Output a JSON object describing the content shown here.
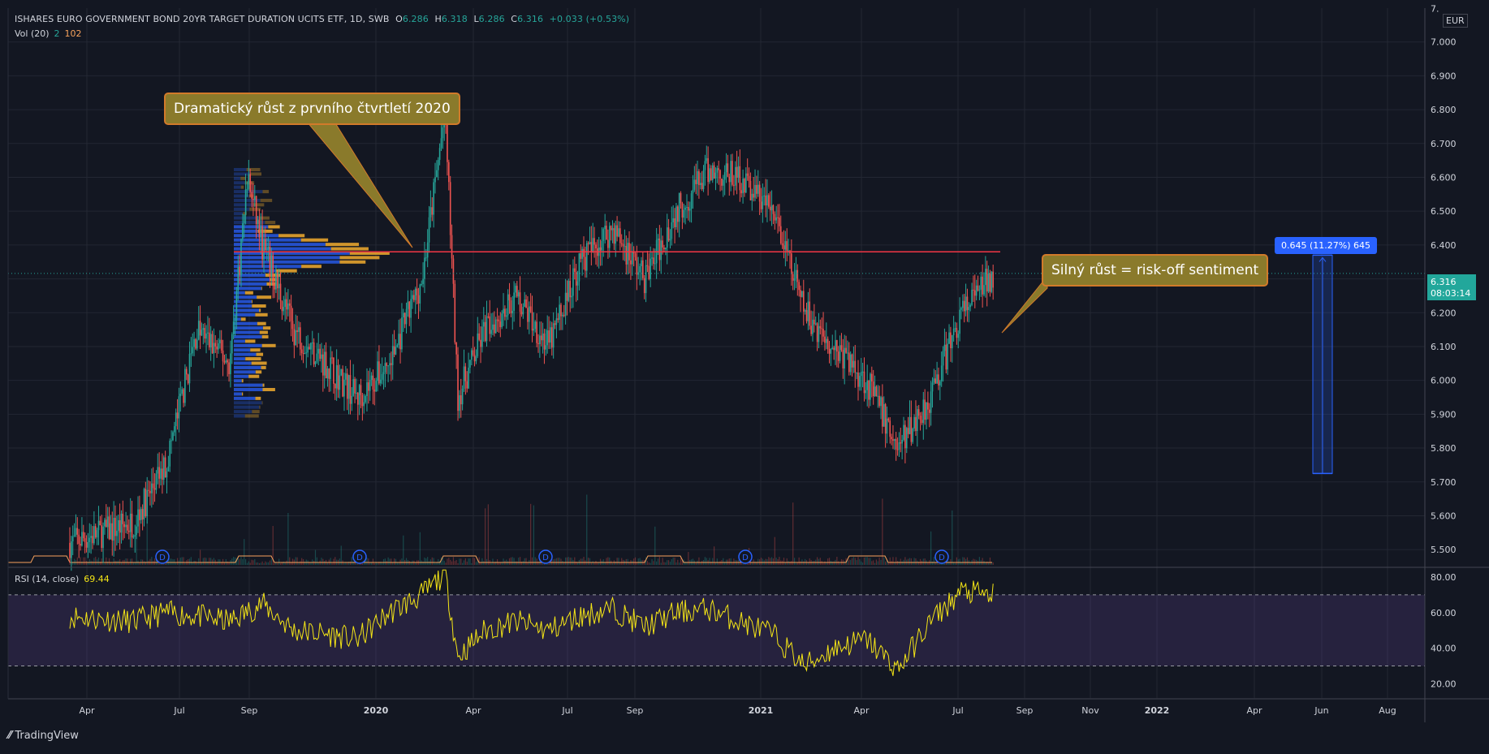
{
  "header": {
    "symbol": "ISHARES EURO GOVERNMENT BOND 20YR TARGET DURATION UCITS ETF, 1D, SWB",
    "o_label": "O",
    "o_value": "6.286",
    "h_label": "H",
    "h_value": "6.318",
    "l_label": "L",
    "l_value": "6.286",
    "c_label": "C",
    "c_value": "6.316",
    "change": "+0.033 (+0.53%)"
  },
  "volume_legend": {
    "label": "Vol (20)",
    "value1": "2",
    "value2": "102"
  },
  "rsi_legend": {
    "label": "RSI (14, close)",
    "value": "69.44"
  },
  "currency": "EUR",
  "last_price": {
    "price": "6.316",
    "countdown": "08:03:14"
  },
  "annotations": {
    "left": "Dramatický růst z prvního čtvrtletí 2020",
    "right": "Silný růst = risk-off sentiment"
  },
  "measure_label": "0.645 (11.27%) 645",
  "branding": "TradingView",
  "colors": {
    "up": "#26a69a",
    "down": "#ef5350",
    "rsi": "#f5e616",
    "resistance": "#f23645",
    "measure": "#2962ff"
  },
  "chart_data": {
    "type": "candlestick",
    "y_ticks": [
      "7.000",
      "6.900",
      "6.800",
      "6.700",
      "6.600",
      "6.500",
      "6.400",
      "6.300",
      "6.200",
      "6.100",
      "6.000",
      "5.900",
      "5.800",
      "5.700",
      "5.600",
      "5.500"
    ],
    "y_top_partial": "7.",
    "y_range": [
      5.45,
      7.1
    ],
    "x_ticks": [
      "Apr",
      "Jul",
      "Sep",
      "2020",
      "Apr",
      "Jul",
      "Sep",
      "2021",
      "Apr",
      "Jul",
      "Sep",
      "Nov",
      "2022",
      "Apr",
      "Jun",
      "Aug"
    ],
    "resistance_level": 6.38,
    "measure": {
      "from": 5.725,
      "to": 6.37
    },
    "dividend_markers": [
      "D",
      "D",
      "D",
      "D",
      "D"
    ],
    "price_path": [
      {
        "x": "2019-03",
        "y": 5.52
      },
      {
        "x": "2019-05",
        "y": 5.58
      },
      {
        "x": "2019-06",
        "y": 5.75
      },
      {
        "x": "2019-07",
        "y": 6.15
      },
      {
        "x": "2019-08",
        "y": 6.05
      },
      {
        "x": "2019-09-01",
        "y": 6.6
      },
      {
        "x": "2019-09-15",
        "y": 6.4
      },
      {
        "x": "2019-10",
        "y": 6.15
      },
      {
        "x": "2019-11",
        "y": 6.05
      },
      {
        "x": "2019-12",
        "y": 5.95
      },
      {
        "x": "2020-01",
        "y": 6.05
      },
      {
        "x": "2020-02",
        "y": 6.3
      },
      {
        "x": "2020-03-08",
        "y": 6.8
      },
      {
        "x": "2020-03-20",
        "y": 5.95
      },
      {
        "x": "2020-04",
        "y": 6.15
      },
      {
        "x": "2020-05",
        "y": 6.25
      },
      {
        "x": "2020-06",
        "y": 6.1
      },
      {
        "x": "2020-07",
        "y": 6.35
      },
      {
        "x": "2020-08",
        "y": 6.45
      },
      {
        "x": "2020-09",
        "y": 6.3
      },
      {
        "x": "2020-10",
        "y": 6.5
      },
      {
        "x": "2020-11",
        "y": 6.62
      },
      {
        "x": "2020-12",
        "y": 6.6
      },
      {
        "x": "2021-01",
        "y": 6.5
      },
      {
        "x": "2021-02",
        "y": 6.2
      },
      {
        "x": "2021-03",
        "y": 6.1
      },
      {
        "x": "2021-04",
        "y": 6.0
      },
      {
        "x": "2021-05",
        "y": 5.8
      },
      {
        "x": "2021-06",
        "y": 5.95
      },
      {
        "x": "2021-07",
        "y": 6.2
      },
      {
        "x": "2021-08",
        "y": 6.316
      }
    ],
    "rsi": {
      "y_ticks": [
        "80.00",
        "60.00",
        "40.00",
        "20.00"
      ],
      "y_range": [
        12,
        85
      ],
      "bands": [
        70,
        30
      ],
      "path": [
        {
          "x": "2019-03",
          "y": 58
        },
        {
          "x": "2019-05",
          "y": 55
        },
        {
          "x": "2019-06",
          "y": 60
        },
        {
          "x": "2019-07",
          "y": 58
        },
        {
          "x": "2019-08",
          "y": 55
        },
        {
          "x": "2019-09",
          "y": 65
        },
        {
          "x": "2019-10",
          "y": 50
        },
        {
          "x": "2019-11",
          "y": 48
        },
        {
          "x": "2019-12",
          "y": 45
        },
        {
          "x": "2020-01",
          "y": 60
        },
        {
          "x": "2020-02",
          "y": 70
        },
        {
          "x": "2020-03-08",
          "y": 82
        },
        {
          "x": "2020-03-20",
          "y": 35
        },
        {
          "x": "2020-04",
          "y": 50
        },
        {
          "x": "2020-05",
          "y": 55
        },
        {
          "x": "2020-06",
          "y": 50
        },
        {
          "x": "2020-07",
          "y": 58
        },
        {
          "x": "2020-08",
          "y": 62
        },
        {
          "x": "2020-09",
          "y": 52
        },
        {
          "x": "2020-10",
          "y": 60
        },
        {
          "x": "2020-11",
          "y": 62
        },
        {
          "x": "2020-12",
          "y": 55
        },
        {
          "x": "2021-01",
          "y": 48
        },
        {
          "x": "2021-02",
          "y": 30
        },
        {
          "x": "2021-03",
          "y": 40
        },
        {
          "x": "2021-04",
          "y": 45
        },
        {
          "x": "2021-05",
          "y": 28
        },
        {
          "x": "2021-06",
          "y": 55
        },
        {
          "x": "2021-07",
          "y": 72
        },
        {
          "x": "2021-08",
          "y": 69.44
        }
      ]
    }
  }
}
